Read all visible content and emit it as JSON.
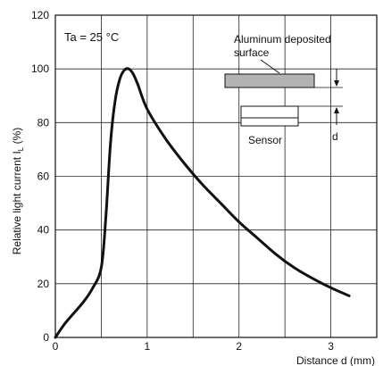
{
  "chart_data": {
    "type": "line",
    "title": "",
    "xlabel": "Distance d (mm)",
    "ylabel_main": "Relative light current I",
    "ylabel_sub": "L",
    "ylabel_unit": " (%)",
    "xlim": [
      0,
      3.5
    ],
    "ylim": [
      0,
      120
    ],
    "x_ticks": [
      0,
      1,
      2,
      3
    ],
    "y_ticks": [
      0,
      20,
      40,
      60,
      80,
      100,
      120
    ],
    "x_grid": [
      0.5,
      1,
      1.5,
      2,
      2.5,
      3
    ],
    "grid": true,
    "annotation": "Ta = 25 °C",
    "inset": {
      "surface_label_line1": "Aluminum deposited",
      "surface_label_line2": "surface",
      "sensor_label": "Sensor",
      "distance_label": "d"
    },
    "series": [
      {
        "x": [
          0,
          0.1,
          0.2,
          0.3,
          0.4,
          0.5,
          0.55,
          0.6,
          0.65,
          0.7,
          0.75,
          0.8,
          0.85,
          0.9,
          1.0,
          1.2,
          1.4,
          1.6,
          1.8,
          2.0,
          2.2,
          2.4,
          2.6,
          2.8,
          3.0,
          3.2
        ],
        "values": [
          0,
          5,
          9,
          13,
          18,
          26,
          45,
          72,
          88,
          96,
          99.5,
          100,
          98,
          94,
          85,
          74,
          65,
          57,
          50,
          43,
          37,
          31,
          26,
          22,
          18.5,
          15.5
        ]
      }
    ]
  }
}
